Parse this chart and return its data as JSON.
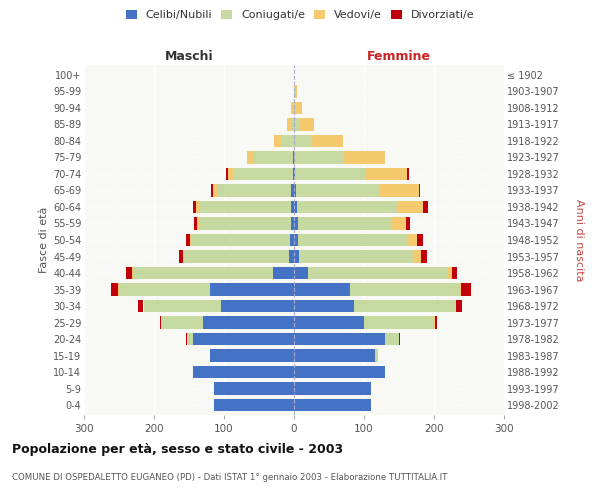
{
  "age_groups": [
    "0-4",
    "5-9",
    "10-14",
    "15-19",
    "20-24",
    "25-29",
    "30-34",
    "35-39",
    "40-44",
    "45-49",
    "50-54",
    "55-59",
    "60-64",
    "65-69",
    "70-74",
    "75-79",
    "80-84",
    "85-89",
    "90-94",
    "95-99",
    "100+"
  ],
  "birth_years": [
    "1998-2002",
    "1993-1997",
    "1988-1992",
    "1983-1987",
    "1978-1982",
    "1973-1977",
    "1968-1972",
    "1963-1967",
    "1958-1962",
    "1953-1957",
    "1948-1952",
    "1943-1947",
    "1938-1942",
    "1933-1937",
    "1928-1932",
    "1923-1927",
    "1918-1922",
    "1913-1917",
    "1908-1912",
    "1903-1907",
    "≤ 1902"
  ],
  "males": {
    "celibi": [
      115,
      115,
      145,
      120,
      145,
      130,
      105,
      120,
      30,
      7,
      6,
      5,
      5,
      4,
      2,
      2,
      0,
      0,
      0,
      0,
      0
    ],
    "coniugati": [
      0,
      0,
      0,
      0,
      8,
      60,
      110,
      130,
      200,
      150,
      140,
      130,
      130,
      105,
      85,
      55,
      18,
      5,
      2,
      0,
      0
    ],
    "vedovi": [
      0,
      0,
      0,
      0,
      0,
      0,
      0,
      2,
      2,
      2,
      3,
      3,
      5,
      7,
      8,
      10,
      10,
      5,
      2,
      0,
      0
    ],
    "divorziati": [
      0,
      0,
      0,
      0,
      1,
      2,
      8,
      10,
      8,
      5,
      5,
      5,
      5,
      2,
      2,
      0,
      0,
      0,
      0,
      0,
      0
    ]
  },
  "females": {
    "nubili": [
      110,
      110,
      130,
      115,
      130,
      100,
      85,
      80,
      20,
      7,
      6,
      5,
      4,
      3,
      2,
      0,
      0,
      0,
      0,
      0,
      0
    ],
    "coniugate": [
      0,
      0,
      0,
      5,
      20,
      100,
      145,
      155,
      200,
      165,
      155,
      135,
      145,
      120,
      100,
      70,
      25,
      8,
      3,
      2,
      0
    ],
    "vedove": [
      0,
      0,
      0,
      0,
      0,
      1,
      2,
      3,
      5,
      10,
      15,
      20,
      35,
      55,
      60,
      60,
      45,
      20,
      8,
      2,
      0
    ],
    "divorziate": [
      0,
      0,
      0,
      0,
      1,
      3,
      8,
      15,
      8,
      8,
      8,
      5,
      8,
      2,
      2,
      0,
      0,
      0,
      0,
      0,
      0
    ]
  },
  "colors": {
    "celibi_nubili": "#4472c4",
    "coniugati_e": "#c5d9a0",
    "vedovi_e": "#f5c96e",
    "divorziati_e": "#c0000a"
  },
  "xlim": 300,
  "title": "Popolazione per età, sesso e stato civile - 2003",
  "subtitle": "COMUNE DI OSPEDALETTO EUGANEO (PD) - Dati ISTAT 1° gennaio 2003 - Elaborazione TUTTITALIA.IT",
  "ylabel_left": "Fasce di età",
  "ylabel_right": "Anni di nascita",
  "xlabel_left": "Maschi",
  "xlabel_right": "Femmine",
  "legend_labels": [
    "Celibi/Nubili",
    "Coniugati/e",
    "Vedovi/e",
    "Divorziati/e"
  ],
  "bg_color": "#ffffff",
  "plot_bg": "#f8f8f5"
}
